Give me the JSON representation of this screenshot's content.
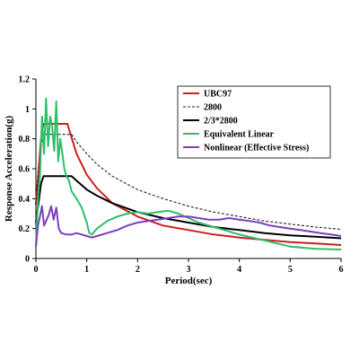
{
  "chart_data": {
    "type": "line",
    "xlabel": "Period(sec)",
    "ylabel": "Response Acceleration(g)",
    "xlim": [
      0,
      6
    ],
    "ylim": [
      0,
      1.2
    ],
    "xticks": [
      "0",
      "1",
      "2",
      "3",
      "4",
      "5",
      "6"
    ],
    "yticks": [
      "0",
      "0.2",
      "0.4",
      "0.6",
      "0.8",
      "1",
      "1.2"
    ],
    "grid": false,
    "legend_position": "top-right",
    "series": [
      {
        "name": "UBC97",
        "color": "#cc1f1f",
        "dash": "solid",
        "x": [
          0,
          0.1,
          0.15,
          0.62,
          0.8,
          1.0,
          1.2,
          1.5,
          2.0,
          2.5,
          3.0,
          3.5,
          4.0,
          4.5,
          5.0,
          5.5,
          6.0
        ],
        "y": [
          0.36,
          0.8,
          0.9,
          0.9,
          0.7,
          0.56,
          0.47,
          0.37,
          0.28,
          0.22,
          0.19,
          0.16,
          0.14,
          0.125,
          0.11,
          0.1,
          0.09
        ]
      },
      {
        "name": "2800",
        "color": "#222222",
        "dash": "dashed",
        "x": [
          0,
          0.1,
          0.15,
          0.7,
          0.8,
          1.0,
          1.2,
          1.5,
          2.0,
          2.5,
          3.0,
          3.5,
          4.0,
          4.5,
          5.0,
          5.5,
          6.0
        ],
        "y": [
          0.36,
          0.75,
          0.83,
          0.83,
          0.78,
          0.7,
          0.63,
          0.55,
          0.46,
          0.4,
          0.35,
          0.31,
          0.28,
          0.25,
          0.23,
          0.21,
          0.195
        ]
      },
      {
        "name": "2/3*2800",
        "color": "#000000",
        "dash": "solid",
        "x": [
          0,
          0.1,
          0.15,
          0.7,
          0.8,
          1.0,
          1.2,
          1.5,
          2.0,
          2.5,
          3.0,
          3.5,
          4.0,
          4.5,
          5.0,
          5.5,
          6.0
        ],
        "y": [
          0.24,
          0.5,
          0.55,
          0.55,
          0.52,
          0.46,
          0.42,
          0.37,
          0.31,
          0.27,
          0.24,
          0.21,
          0.19,
          0.17,
          0.155,
          0.145,
          0.135
        ]
      },
      {
        "name": "Equivalent Linear",
        "color": "#2cbf6a",
        "dash": "solid",
        "x": [
          0,
          0.04,
          0.08,
          0.12,
          0.16,
          0.2,
          0.24,
          0.28,
          0.32,
          0.36,
          0.4,
          0.44,
          0.48,
          0.52,
          0.56,
          0.6,
          0.65,
          0.7,
          0.8,
          0.9,
          1.0,
          1.05,
          1.1,
          1.2,
          1.4,
          1.6,
          1.8,
          2.0,
          2.2,
          2.4,
          2.6,
          2.8,
          3.0,
          3.2,
          3.5,
          4.0,
          4.5,
          5.0,
          5.5,
          6.0
        ],
        "y": [
          0.08,
          0.4,
          0.55,
          0.95,
          0.7,
          1.07,
          0.75,
          0.95,
          0.88,
          0.72,
          1.05,
          0.65,
          0.8,
          0.7,
          0.6,
          0.55,
          0.52,
          0.45,
          0.4,
          0.34,
          0.24,
          0.17,
          0.16,
          0.2,
          0.25,
          0.28,
          0.3,
          0.31,
          0.3,
          0.31,
          0.32,
          0.3,
          0.27,
          0.24,
          0.21,
          0.16,
          0.12,
          0.08,
          0.065,
          0.06
        ]
      },
      {
        "name": "Nonlinear (Effective Stress)",
        "color": "#7b3fbf",
        "dash": "solid",
        "x": [
          0,
          0.04,
          0.08,
          0.12,
          0.16,
          0.2,
          0.25,
          0.3,
          0.35,
          0.4,
          0.45,
          0.5,
          0.6,
          0.7,
          0.8,
          0.9,
          1.0,
          1.1,
          1.2,
          1.4,
          1.6,
          1.8,
          2.0,
          2.2,
          2.4,
          2.6,
          2.8,
          3.0,
          3.2,
          3.4,
          3.6,
          3.8,
          4.0,
          4.2,
          4.4,
          4.6,
          4.8,
          5.0,
          5.2,
          5.4,
          5.6,
          5.8,
          6.0
        ],
        "y": [
          0.08,
          0.22,
          0.28,
          0.35,
          0.22,
          0.25,
          0.29,
          0.35,
          0.26,
          0.34,
          0.2,
          0.17,
          0.16,
          0.16,
          0.17,
          0.16,
          0.15,
          0.14,
          0.15,
          0.17,
          0.19,
          0.22,
          0.24,
          0.25,
          0.26,
          0.27,
          0.28,
          0.28,
          0.27,
          0.26,
          0.26,
          0.27,
          0.26,
          0.25,
          0.24,
          0.22,
          0.21,
          0.2,
          0.19,
          0.18,
          0.17,
          0.16,
          0.15
        ]
      }
    ]
  }
}
